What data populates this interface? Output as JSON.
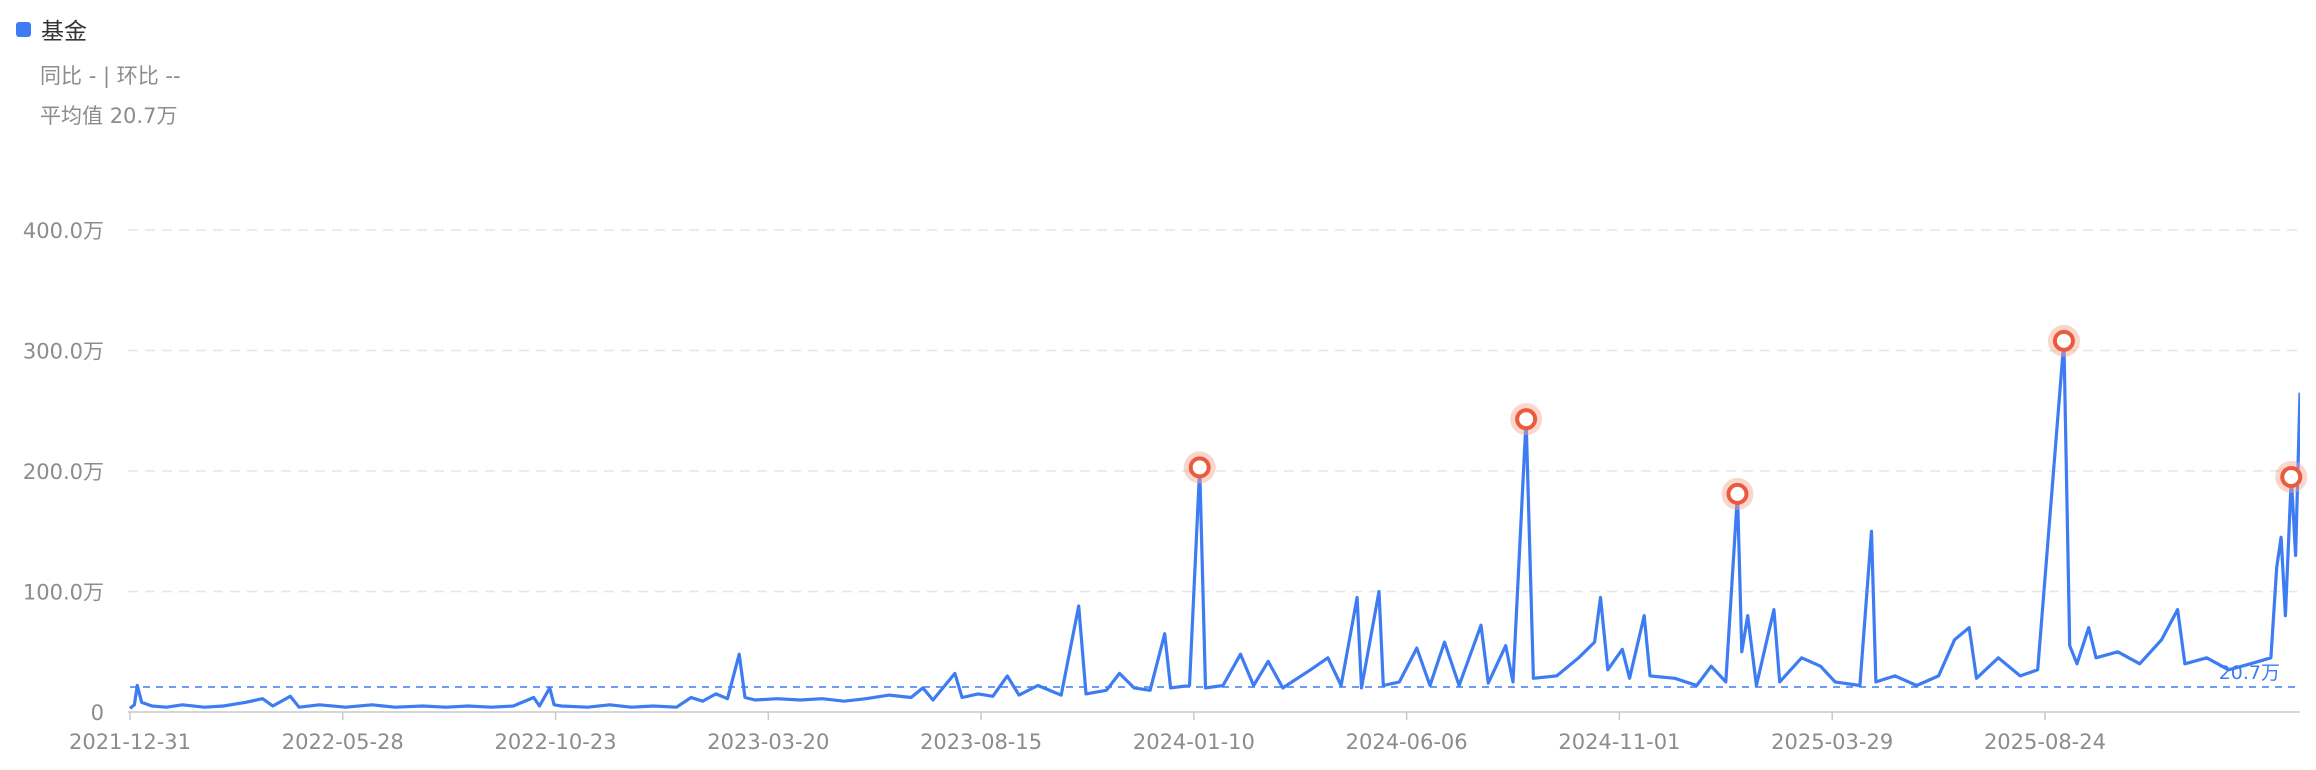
{
  "legend": {
    "label": "基金",
    "color": "#3d7cf2"
  },
  "stats": {
    "yoy_label": "同比",
    "yoy_value": "-",
    "sep": "|",
    "mom_label": "环比",
    "mom_value": "--",
    "avg_label": "平均值",
    "avg_value": "20.7万"
  },
  "chart_data": {
    "type": "line",
    "x_tick_labels": [
      "2021-12-31",
      "2022-05-28",
      "2022-10-23",
      "2023-03-20",
      "2023-08-15",
      "2024-01-10",
      "2024-06-06",
      "2024-11-01",
      "2025-03-29",
      "2025-08-24"
    ],
    "y_tick_labels": [
      "0",
      "100.0万",
      "200.0万",
      "300.0万",
      "400.0万"
    ],
    "y_unit": "万",
    "ylim": [
      0,
      400
    ],
    "grid": true,
    "x_range": [
      "2021-12-31",
      "2026-01-28"
    ],
    "average": {
      "value": 20.7,
      "label": "20.7万"
    },
    "series": [
      {
        "name": "基金",
        "color": "#3d7cf2",
        "points": [
          [
            "2021-12-31",
            3
          ],
          [
            "2022-01-03",
            6
          ],
          [
            "2022-01-05",
            22
          ],
          [
            "2022-01-08",
            8
          ],
          [
            "2022-01-15",
            5
          ],
          [
            "2022-01-25",
            4
          ],
          [
            "2022-02-05",
            6
          ],
          [
            "2022-02-20",
            4
          ],
          [
            "2022-03-05",
            5
          ],
          [
            "2022-03-20",
            8
          ],
          [
            "2022-04-01",
            11
          ],
          [
            "2022-04-08",
            5
          ],
          [
            "2022-04-20",
            13
          ],
          [
            "2022-04-26",
            4
          ],
          [
            "2022-05-10",
            6
          ],
          [
            "2022-05-28",
            4
          ],
          [
            "2022-06-15",
            6
          ],
          [
            "2022-07-01",
            4
          ],
          [
            "2022-07-20",
            5
          ],
          [
            "2022-08-05",
            4
          ],
          [
            "2022-08-20",
            5
          ],
          [
            "2022-09-05",
            4
          ],
          [
            "2022-09-20",
            5
          ],
          [
            "2022-10-04",
            12
          ],
          [
            "2022-10-08",
            5
          ],
          [
            "2022-10-15",
            20
          ],
          [
            "2022-10-18",
            6
          ],
          [
            "2022-10-23",
            5
          ],
          [
            "2022-11-10",
            4
          ],
          [
            "2022-11-25",
            6
          ],
          [
            "2022-12-10",
            4
          ],
          [
            "2022-12-25",
            5
          ],
          [
            "2023-01-10",
            4
          ],
          [
            "2023-01-20",
            12
          ],
          [
            "2023-01-28",
            9
          ],
          [
            "2023-02-06",
            15
          ],
          [
            "2023-02-14",
            11
          ],
          [
            "2023-02-22",
            48
          ],
          [
            "2023-02-26",
            12
          ],
          [
            "2023-03-05",
            10
          ],
          [
            "2023-03-20",
            11
          ],
          [
            "2023-04-05",
            10
          ],
          [
            "2023-04-20",
            11
          ],
          [
            "2023-05-05",
            9
          ],
          [
            "2023-05-20",
            11
          ],
          [
            "2023-06-05",
            14
          ],
          [
            "2023-06-20",
            12
          ],
          [
            "2023-06-28",
            20
          ],
          [
            "2023-07-05",
            10
          ],
          [
            "2023-07-20",
            32
          ],
          [
            "2023-07-25",
            12
          ],
          [
            "2023-08-05",
            15
          ],
          [
            "2023-08-15",
            13
          ],
          [
            "2023-08-25",
            30
          ],
          [
            "2023-09-02",
            14
          ],
          [
            "2023-09-15",
            22
          ],
          [
            "2023-10-01",
            14
          ],
          [
            "2023-10-13",
            88
          ],
          [
            "2023-10-18",
            15
          ],
          [
            "2023-11-01",
            18
          ],
          [
            "2023-11-10",
            32
          ],
          [
            "2023-11-20",
            20
          ],
          [
            "2023-12-01",
            18
          ],
          [
            "2023-12-11",
            65
          ],
          [
            "2023-12-15",
            20
          ],
          [
            "2023-12-28",
            22
          ],
          [
            "2024-01-04",
            203
          ],
          [
            "2024-01-08",
            20
          ],
          [
            "2024-01-20",
            22
          ],
          [
            "2024-02-01",
            48
          ],
          [
            "2024-02-10",
            22
          ],
          [
            "2024-02-20",
            42
          ],
          [
            "2024-03-01",
            20
          ],
          [
            "2024-03-20",
            35
          ],
          [
            "2024-04-01",
            45
          ],
          [
            "2024-04-10",
            22
          ],
          [
            "2024-04-21",
            95
          ],
          [
            "2024-04-24",
            20
          ],
          [
            "2024-05-06",
            100
          ],
          [
            "2024-05-09",
            22
          ],
          [
            "2024-05-20",
            25
          ],
          [
            "2024-06-01",
            53
          ],
          [
            "2024-06-10",
            22
          ],
          [
            "2024-06-20",
            58
          ],
          [
            "2024-06-30",
            22
          ],
          [
            "2024-07-15",
            72
          ],
          [
            "2024-07-20",
            24
          ],
          [
            "2024-08-01",
            55
          ],
          [
            "2024-08-06",
            25
          ],
          [
            "2024-08-15",
            243
          ],
          [
            "2024-08-20",
            28
          ],
          [
            "2024-09-05",
            30
          ],
          [
            "2024-09-20",
            45
          ],
          [
            "2024-10-01",
            58
          ],
          [
            "2024-10-05",
            95
          ],
          [
            "2024-10-10",
            35
          ],
          [
            "2024-10-20",
            52
          ],
          [
            "2024-10-25",
            28
          ],
          [
            "2024-11-04",
            80
          ],
          [
            "2024-11-08",
            30
          ],
          [
            "2024-11-25",
            28
          ],
          [
            "2024-12-10",
            22
          ],
          [
            "2024-12-20",
            38
          ],
          [
            "2024-12-30",
            25
          ],
          [
            "2025-01-07",
            181
          ],
          [
            "2025-01-10",
            50
          ],
          [
            "2025-01-14",
            80
          ],
          [
            "2025-01-20",
            22
          ],
          [
            "2025-02-01",
            85
          ],
          [
            "2025-02-05",
            25
          ],
          [
            "2025-02-20",
            45
          ],
          [
            "2025-03-05",
            38
          ],
          [
            "2025-03-15",
            25
          ],
          [
            "2025-04-01",
            22
          ],
          [
            "2025-04-09",
            150
          ],
          [
            "2025-04-12",
            25
          ],
          [
            "2025-04-25",
            30
          ],
          [
            "2025-05-10",
            22
          ],
          [
            "2025-05-25",
            30
          ],
          [
            "2025-06-05",
            60
          ],
          [
            "2025-06-15",
            70
          ],
          [
            "2025-06-20",
            28
          ],
          [
            "2025-07-05",
            45
          ],
          [
            "2025-07-20",
            30
          ],
          [
            "2025-08-01",
            35
          ],
          [
            "2025-08-19",
            308
          ],
          [
            "2025-08-23",
            55
          ],
          [
            "2025-08-28",
            40
          ],
          [
            "2025-09-05",
            70
          ],
          [
            "2025-09-10",
            45
          ],
          [
            "2025-09-25",
            50
          ],
          [
            "2025-10-10",
            40
          ],
          [
            "2025-10-25",
            60
          ],
          [
            "2025-11-05",
            85
          ],
          [
            "2025-11-10",
            40
          ],
          [
            "2025-11-25",
            45
          ],
          [
            "2025-12-10",
            35
          ],
          [
            "2025-12-25",
            40
          ],
          [
            "2026-01-08",
            45
          ],
          [
            "2026-01-12",
            120
          ],
          [
            "2026-01-15",
            145
          ],
          [
            "2026-01-18",
            80
          ],
          [
            "2026-01-22",
            195
          ],
          [
            "2026-01-25",
            130
          ],
          [
            "2026-01-28",
            265
          ]
        ]
      }
    ],
    "marked_points": [
      [
        "2024-01-04",
        203
      ],
      [
        "2024-08-15",
        243
      ],
      [
        "2025-01-07",
        181
      ],
      [
        "2025-08-19",
        308
      ],
      [
        "2026-01-22",
        195
      ]
    ]
  }
}
